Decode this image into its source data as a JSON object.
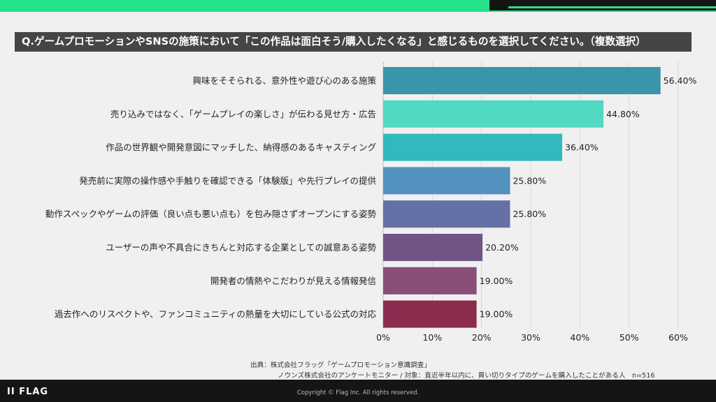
{
  "question": "Q.ゲームプロモーションやSNSの施策において「この作品は面白そう/購入したくなる」と感じるものを選択してください。（複数選択）",
  "chart_data": {
    "type": "bar",
    "orientation": "horizontal",
    "categories": [
      "興味をそそられる、意外性や遊び心のある施策",
      "売り込みではなく、「ゲームプレイの楽しさ」が伝わる見せ方・広告",
      "作品の世界観や開発意図にマッチした、納得感のあるキャスティング",
      "発売前に実際の操作感や手触りを確認できる「体験版」や先行プレイの提供",
      "動作スペックやゲームの評価（良い点も悪い点も）を包み隠さずオープンにする姿勢",
      "ユーザーの声や不具合にきちんと対応する企業としての誠意ある姿勢",
      "開発者の情熱やこだわりが見える情報発信",
      "過去作へのリスペクトや、ファンコミュニティの熱量を大切にしている公式の対応"
    ],
    "values": [
      56.4,
      44.8,
      36.4,
      25.8,
      25.8,
      20.2,
      19.0,
      19.0
    ],
    "value_labels": [
      "56.40%",
      "44.80%",
      "36.40%",
      "25.80%",
      "25.80%",
      "20.20%",
      "19.00%",
      "19.00%"
    ],
    "colors": [
      "#3a95ab",
      "#52d9c1",
      "#33b8be",
      "#5392be",
      "#6470a6",
      "#6f5485",
      "#8a4f78",
      "#8b2c4f"
    ],
    "xlim": [
      0,
      60
    ],
    "ticks": [
      "0%",
      "10%",
      "20%",
      "30%",
      "40%",
      "50%",
      "60%"
    ],
    "grid": true
  },
  "source": {
    "line1": "出典：株式会社フラッグ「ゲームプロモーション意識調査」",
    "line2": "ノウンズ株式会社のアンケートモニター / 対象：直近半年以内に、買い切りタイプのゲームを購入したことがある人　n=516"
  },
  "footer": {
    "logo": "II FLAG",
    "copyright": "Copyright © Flag Inc. All rights reserved."
  }
}
